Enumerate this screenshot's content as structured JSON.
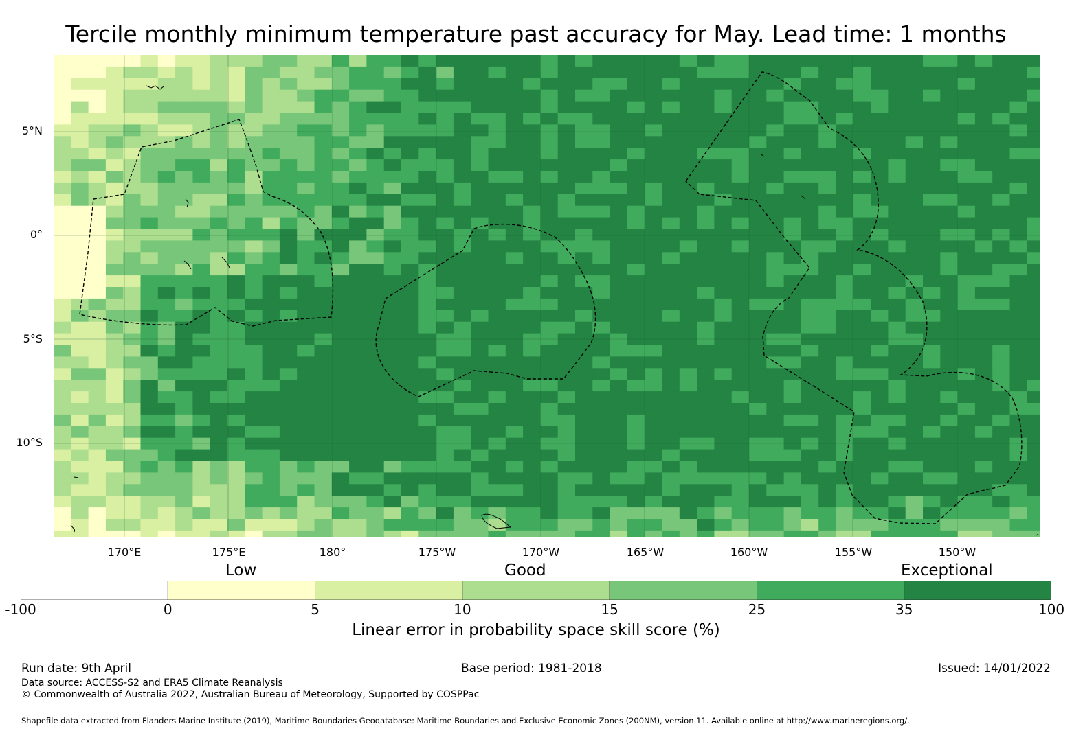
{
  "title": "Tercile monthly minimum temperature past accuracy for May. Lead time: 1 months",
  "map": {
    "lat_labels": [
      "5°N",
      "0°",
      "5°S",
      "10°S"
    ],
    "lon_labels": [
      "170°E",
      "175°E",
      "180°",
      "175°W",
      "170°W",
      "165°W",
      "160°W",
      "155°W",
      "150°W"
    ],
    "bins": [
      {
        "range": "-100 to 0",
        "color": "#ffffff"
      },
      {
        "range": "0 to 5",
        "color": "#ffffcc"
      },
      {
        "range": "5 to 10",
        "color": "#d9f0a3"
      },
      {
        "range": "10 to 15",
        "color": "#addd8e"
      },
      {
        "range": "15 to 25",
        "color": "#78c679"
      },
      {
        "range": "25 to 35",
        "color": "#41ab5d"
      },
      {
        "range": "35 to 100",
        "color": "#238443"
      }
    ]
  },
  "categories": {
    "low": "Low",
    "good": "Good",
    "exceptional": "Exceptional"
  },
  "colorbar": {
    "ticks": [
      "-100",
      "0",
      "5",
      "10",
      "15",
      "25",
      "35",
      "100"
    ],
    "colors": [
      "#ffffff",
      "#ffffcc",
      "#d9f0a3",
      "#addd8e",
      "#78c679",
      "#41ab5d",
      "#238443"
    ],
    "label": "Linear error in probability space skill score (%)"
  },
  "footer": {
    "run_date": "Run date: 9th April",
    "base_period": "Base period: 1981-2018",
    "issued": "Issued: 14/01/2022",
    "data_source": "Data source: ACCESS-S2 and ERA5 Climate Reanalysis",
    "copyright": "© Commonwealth of Australia 2022, Australian Bureau of Meteorology, Supported by COSPPac",
    "shapefile": "Shapefile data extracted from Flanders Marine Institute (2019), Maritime Boundaries Geodatabase: Maritime Boundaries and Exclusive Economic Zones (200NM), version 11. Available online at http://www.marineregions.org/."
  }
}
